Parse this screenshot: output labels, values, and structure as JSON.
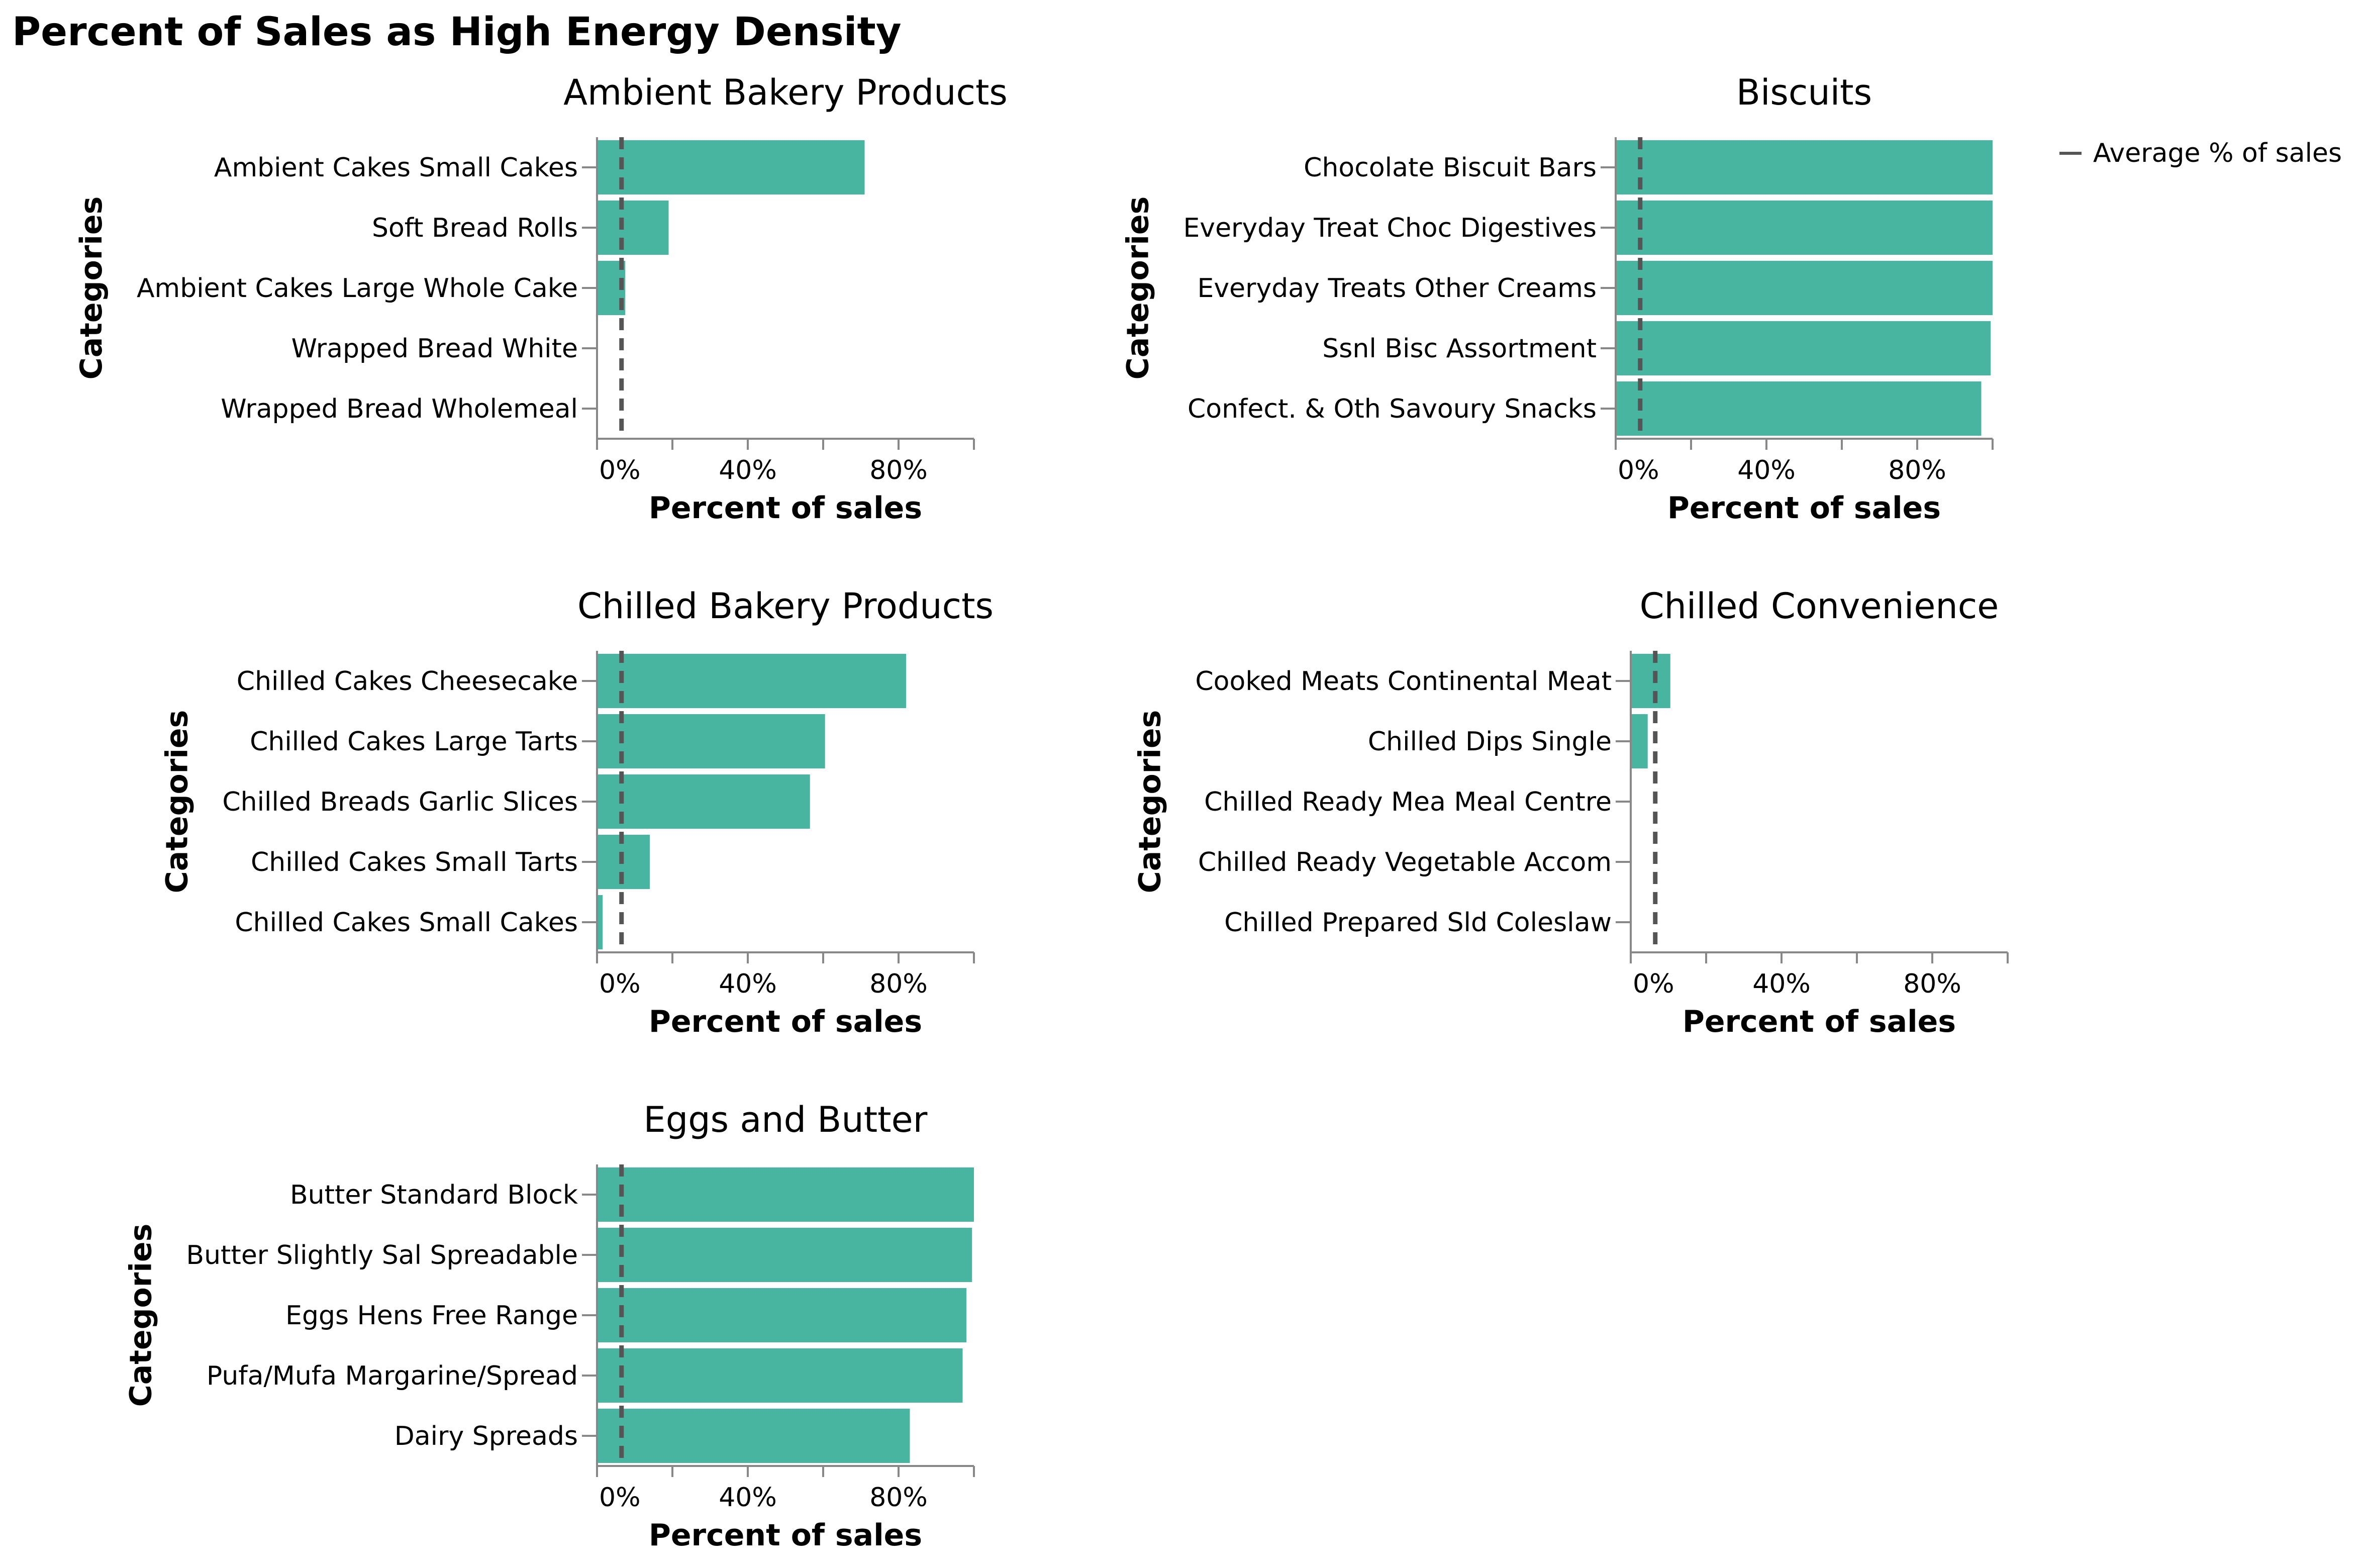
{
  "chart_data": {
    "type": "bar",
    "orientation": "horizontal",
    "title": "Percent of Sales as High Energy Density",
    "xlabel": "Percent of sales",
    "ylabel": "Categories",
    "xlim": [
      0,
      100
    ],
    "x_ticks": [
      "0%",
      "40%",
      "80%"
    ],
    "legend": {
      "label": "Average % of sales",
      "placement": "top-right"
    },
    "colors": {
      "bar": "#48b5a0",
      "average_line": "#555555"
    },
    "panels": [
      {
        "title": "Ambient Bakery Products",
        "average": 6.5,
        "categories": [
          "Ambient Cakes Small Cakes",
          "Soft Bread Rolls",
          "Ambient Cakes Large Whole Cake",
          "Wrapped Bread White",
          "Wrapped Bread Wholemeal"
        ],
        "values": [
          71,
          19,
          7.5,
          0,
          0
        ]
      },
      {
        "title": "Biscuits",
        "average": 6.5,
        "categories": [
          "Chocolate Biscuit Bars",
          "Everyday Treat Choc Digestives",
          "Everyday Treats Other Creams",
          "Ssnl Bisc Assortment",
          "Confect. & Oth Savoury Snacks"
        ],
        "values": [
          100,
          100,
          100,
          99.5,
          97
        ]
      },
      {
        "title": "Chilled Bakery Products",
        "average": 6.5,
        "categories": [
          "Chilled Cakes Cheesecake",
          "Chilled Cakes Large Tarts",
          "Chilled Breads Garlic Slices",
          "Chilled Cakes Small Tarts",
          "Chilled Cakes Small Cakes"
        ],
        "values": [
          82,
          60.5,
          56.5,
          14,
          1.5
        ]
      },
      {
        "title": "Chilled Convenience",
        "average": 6.5,
        "categories": [
          "Cooked Meats Continental Meat",
          "Chilled Dips Single",
          "Chilled Ready Mea Meal Centre",
          "Chilled Ready Vegetable Accom",
          "Chilled Prepared Sld Coleslaw"
        ],
        "values": [
          10.5,
          4.5,
          0,
          0,
          0
        ]
      },
      {
        "title": "Eggs and Butter",
        "average": 6.5,
        "categories": [
          "Butter Standard Block",
          "Butter Slightly Sal Spreadable",
          "Eggs Hens Free Range",
          "Pufa/Mufa Margarine/Spread",
          "Dairy Spreads"
        ],
        "values": [
          100,
          99.5,
          98,
          97,
          83
        ]
      }
    ]
  }
}
